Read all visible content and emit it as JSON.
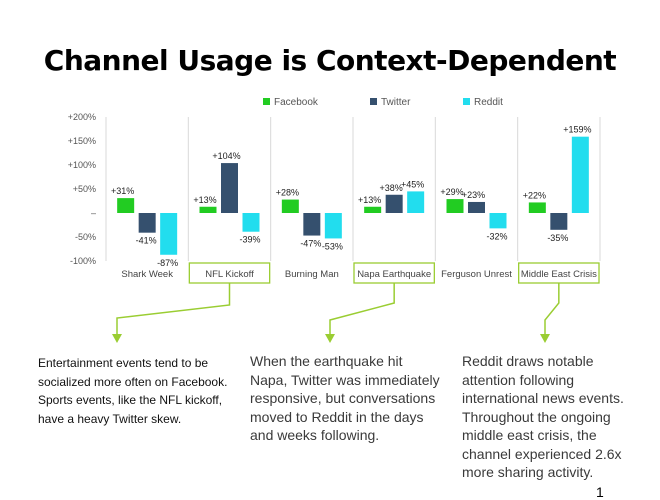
{
  "title": "Channel Usage is Context-Dependent",
  "chart_data": {
    "type": "bar",
    "categories": [
      "Shark Week",
      "NFL Kickoff",
      "Burning Man",
      "Napa Earthquake",
      "Ferguson Unrest",
      "Middle East Crisis"
    ],
    "highlighted_categories": [
      "NFL Kickoff",
      "Napa Earthquake",
      "Middle East Crisis"
    ],
    "series": [
      {
        "name": "Facebook",
        "color": "#22cc22",
        "values": [
          31,
          13,
          28,
          13,
          29,
          22
        ]
      },
      {
        "name": "Twitter",
        "color": "#35506e",
        "values": [
          -41,
          104,
          -47,
          38,
          23,
          -35
        ]
      },
      {
        "name": "Reddit",
        "color": "#22ddee",
        "values": [
          -87,
          -39,
          -53,
          45,
          -32,
          159
        ]
      }
    ],
    "value_labels": [
      [
        "+31%",
        "-41%",
        "-87%"
      ],
      [
        "+13%",
        "+104%",
        "-39%"
      ],
      [
        "+28%",
        "-47%",
        "-53%"
      ],
      [
        "+13%",
        "+38%",
        "+45%"
      ],
      [
        "+29%",
        "+23%",
        "-32%"
      ],
      [
        "+22%",
        "-35%",
        "+159%"
      ]
    ],
    "yticks": [
      200,
      150,
      100,
      50,
      0,
      -50,
      -100
    ],
    "ytick_labels": [
      "+200%",
      "+150%",
      "+100%",
      "+50%",
      "–",
      "-50%",
      "-100%"
    ],
    "ylim": [
      -100,
      200
    ],
    "legend_position": "top",
    "highlight_color": "#9acd32"
  },
  "notes": {
    "left": "Entertainment events tend to be socialized more often on Facebook. Sports events, like the NFL kickoff, have a heavy Twitter skew.",
    "mid": "When the earthquake hit Napa, Twitter was immediately responsive, but conversations moved to Reddit in the days and weeks following.",
    "right": "Reddit draws notable attention following international news events. Throughout the ongoing middle east crisis, the channel experienced 2.6x more sharing activity."
  },
  "page_number": "1"
}
